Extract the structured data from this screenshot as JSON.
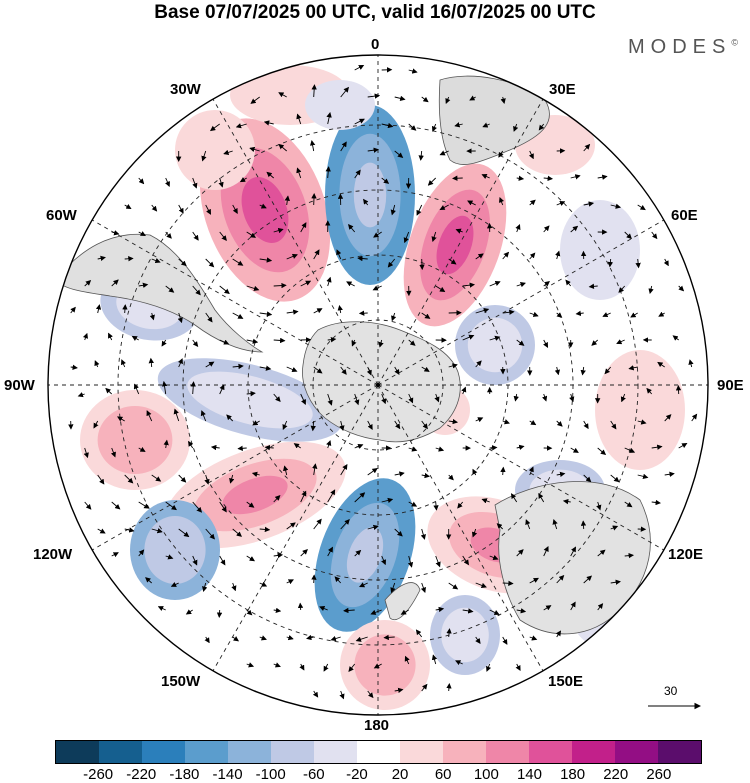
{
  "title": "Base 07/07/2025 00 UTC, valid 16/07/2025 00 UTC",
  "brand": "MODES",
  "brand_mark": "©",
  "longitude_labels": {
    "deg0": "0",
    "e30": "30E",
    "e60": "60E",
    "e90": "90E",
    "e120": "120E",
    "e150": "150E",
    "deg180": "180",
    "w150": "150W",
    "w120": "120W",
    "w90": "90W",
    "w60": "60W",
    "w30": "30W"
  },
  "reference_vector": "30",
  "colorbar": {
    "ticks": [
      "-260",
      "-220",
      "-180",
      "-140",
      "-100",
      "-60",
      "-20",
      "20",
      "60",
      "100",
      "140",
      "180",
      "220",
      "260"
    ],
    "colors": [
      "#0d3b5a",
      "#155f8f",
      "#2b7fbb",
      "#5b9dcd",
      "#8cb3da",
      "#bfc9e5",
      "#e1e1f0",
      "#ffffff",
      "#fad9da",
      "#f7b2bc",
      "#ef86a8",
      "#e0529a",
      "#c2208a",
      "#930e84",
      "#5b0d6c"
    ]
  }
}
